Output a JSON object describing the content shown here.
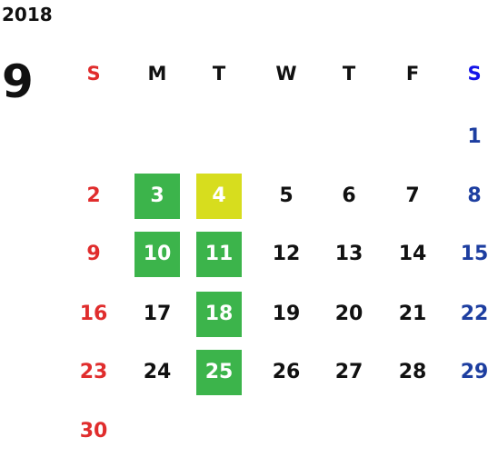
{
  "year": "2018",
  "month": "9",
  "colors": {
    "sunday": "#e02d2d",
    "saturday": "#1d3ea0",
    "weekday": "#111111",
    "saturday_header": "#1414e8",
    "highlight_green": "#3cb44b",
    "highlight_yellow": "#d7dd1e"
  },
  "weekday_headers": [
    "S",
    "M",
    "T",
    "W",
    "T",
    "F",
    "S"
  ],
  "weeks": [
    [
      "",
      "",
      "",
      "",
      "",
      "",
      "1"
    ],
    [
      "2",
      "3",
      "4",
      "5",
      "6",
      "7",
      "8"
    ],
    [
      "9",
      "10",
      "11",
      "12",
      "13",
      "14",
      "15"
    ],
    [
      "16",
      "17",
      "18",
      "19",
      "20",
      "21",
      "22"
    ],
    [
      "23",
      "24",
      "25",
      "26",
      "27",
      "28",
      "29"
    ],
    [
      "30",
      "",
      "",
      "",
      "",
      "",
      ""
    ]
  ],
  "highlights": {
    "3": "green",
    "4": "yellow",
    "10": "green",
    "11": "green",
    "18": "green",
    "25": "green"
  }
}
